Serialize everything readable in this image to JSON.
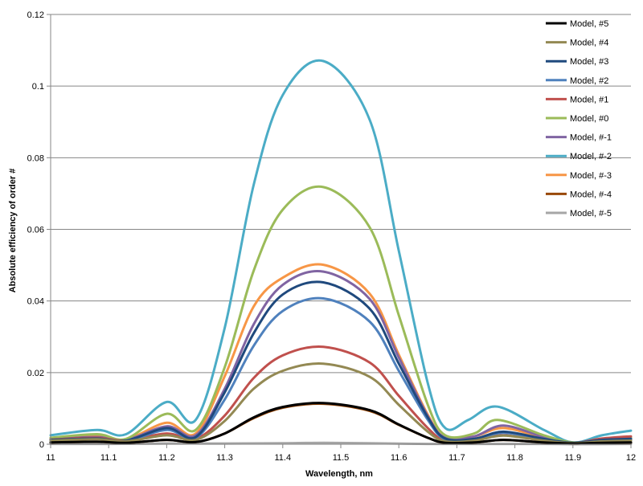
{
  "chart_data": {
    "type": "line",
    "title": "",
    "xlabel": "Wavelength, nm",
    "ylabel": "Absolute efficiency of order #",
    "xlim": [
      11,
      12
    ],
    "ylim": [
      0,
      0.12
    ],
    "xticks": [
      "11",
      "11.1",
      "11.2",
      "11.3",
      "11.4",
      "11.5",
      "11.6",
      "11.7",
      "11.8",
      "11.9",
      "12"
    ],
    "yticks": [
      "0",
      "0.02",
      "0.04",
      "0.06",
      "0.08",
      "0.1",
      "0.12"
    ],
    "grid": "horizontal major",
    "legend_position": "top-right",
    "series": [
      {
        "name": "Model, #5",
        "color": "#000000",
        "points": [
          [
            11,
            0.0005
          ],
          [
            11.08,
            0.0007
          ],
          [
            11.13,
            0.0004
          ],
          [
            11.2,
            0.0012
          ],
          [
            11.25,
            0.0006
          ],
          [
            11.3,
            0.003
          ],
          [
            11.35,
            0.0075
          ],
          [
            11.4,
            0.0104
          ],
          [
            11.47,
            0.0115
          ],
          [
            11.55,
            0.0095
          ],
          [
            11.6,
            0.0055
          ],
          [
            11.65,
            0.0018
          ],
          [
            11.68,
            0.0004
          ],
          [
            11.73,
            0.0005
          ],
          [
            11.78,
            0.0012
          ],
          [
            11.85,
            0.0005
          ],
          [
            11.9,
            0.0002
          ],
          [
            11.95,
            0.0004
          ],
          [
            12,
            0.0005
          ]
        ]
      },
      {
        "name": "Model, #4",
        "color": "#938953",
        "points": [
          [
            11,
            0.001
          ],
          [
            11.08,
            0.0014
          ],
          [
            11.13,
            0.0008
          ],
          [
            11.2,
            0.0025
          ],
          [
            11.25,
            0.0012
          ],
          [
            11.3,
            0.0065
          ],
          [
            11.35,
            0.0155
          ],
          [
            11.4,
            0.0205
          ],
          [
            11.47,
            0.0225
          ],
          [
            11.55,
            0.0188
          ],
          [
            11.6,
            0.011
          ],
          [
            11.65,
            0.0035
          ],
          [
            11.68,
            0.0008
          ],
          [
            11.73,
            0.001
          ],
          [
            11.78,
            0.0024
          ],
          [
            11.85,
            0.001
          ],
          [
            11.9,
            0.0003
          ],
          [
            11.95,
            0.0008
          ],
          [
            12,
            0.001
          ]
        ]
      },
      {
        "name": "Model, #3",
        "color": "#1F497D",
        "points": [
          [
            11,
            0.0012
          ],
          [
            11.08,
            0.0016
          ],
          [
            11.13,
            0.001
          ],
          [
            11.2,
            0.0045
          ],
          [
            11.25,
            0.002
          ],
          [
            11.3,
            0.0145
          ],
          [
            11.35,
            0.031
          ],
          [
            11.4,
            0.0418
          ],
          [
            11.47,
            0.0452
          ],
          [
            11.55,
            0.0378
          ],
          [
            11.6,
            0.0225
          ],
          [
            11.65,
            0.0075
          ],
          [
            11.68,
            0.0016
          ],
          [
            11.73,
            0.0015
          ],
          [
            11.78,
            0.0035
          ],
          [
            11.85,
            0.0015
          ],
          [
            11.9,
            0.0004
          ],
          [
            11.95,
            0.0012
          ],
          [
            12,
            0.0015
          ]
        ]
      },
      {
        "name": "Model, #2",
        "color": "#4F81BD",
        "points": [
          [
            11,
            0.0011
          ],
          [
            11.08,
            0.0015
          ],
          [
            11.13,
            0.0009
          ],
          [
            11.2,
            0.004
          ],
          [
            11.25,
            0.0018
          ],
          [
            11.3,
            0.0125
          ],
          [
            11.35,
            0.0275
          ],
          [
            11.4,
            0.0372
          ],
          [
            11.47,
            0.0407
          ],
          [
            11.55,
            0.0342
          ],
          [
            11.6,
            0.0205
          ],
          [
            11.65,
            0.0068
          ],
          [
            11.68,
            0.0014
          ],
          [
            11.73,
            0.0013
          ],
          [
            11.78,
            0.0032
          ],
          [
            11.85,
            0.0013
          ],
          [
            11.9,
            0.0003
          ],
          [
            11.95,
            0.0011
          ],
          [
            12,
            0.0014
          ]
        ]
      },
      {
        "name": "Model, #1",
        "color": "#C0504D",
        "points": [
          [
            11,
            0.0013
          ],
          [
            11.08,
            0.0018
          ],
          [
            11.13,
            0.001
          ],
          [
            11.2,
            0.003
          ],
          [
            11.25,
            0.0015
          ],
          [
            11.3,
            0.008
          ],
          [
            11.35,
            0.0185
          ],
          [
            11.4,
            0.0248
          ],
          [
            11.47,
            0.0272
          ],
          [
            11.55,
            0.0228
          ],
          [
            11.6,
            0.0135
          ],
          [
            11.65,
            0.0045
          ],
          [
            11.68,
            0.001
          ],
          [
            11.73,
            0.0012
          ],
          [
            11.78,
            0.0025
          ],
          [
            11.85,
            0.001
          ],
          [
            11.9,
            0.0003
          ],
          [
            11.95,
            0.0016
          ],
          [
            12,
            0.0022
          ]
        ]
      },
      {
        "name": "Model, #0",
        "color": "#9BBB59",
        "points": [
          [
            11,
            0.0018
          ],
          [
            11.08,
            0.0028
          ],
          [
            11.13,
            0.0015
          ],
          [
            11.2,
            0.0085
          ],
          [
            11.25,
            0.004
          ],
          [
            11.3,
            0.0215
          ],
          [
            11.35,
            0.0485
          ],
          [
            11.4,
            0.0655
          ],
          [
            11.47,
            0.0718
          ],
          [
            11.55,
            0.0605
          ],
          [
            11.6,
            0.036
          ],
          [
            11.65,
            0.011
          ],
          [
            11.68,
            0.0025
          ],
          [
            11.73,
            0.003
          ],
          [
            11.77,
            0.0068
          ],
          [
            11.85,
            0.0025
          ],
          [
            11.9,
            0.0005
          ],
          [
            11.95,
            0.0012
          ],
          [
            12,
            0.0018
          ]
        ]
      },
      {
        "name": "Model, #-1",
        "color": "#8064A2",
        "points": [
          [
            11,
            0.0014
          ],
          [
            11.08,
            0.002
          ],
          [
            11.13,
            0.0012
          ],
          [
            11.2,
            0.005
          ],
          [
            11.25,
            0.0025
          ],
          [
            11.3,
            0.0155
          ],
          [
            11.35,
            0.0335
          ],
          [
            11.4,
            0.0445
          ],
          [
            11.47,
            0.0482
          ],
          [
            11.55,
            0.0405
          ],
          [
            11.6,
            0.0242
          ],
          [
            11.65,
            0.0078
          ],
          [
            11.68,
            0.0018
          ],
          [
            11.73,
            0.0022
          ],
          [
            11.78,
            0.0052
          ],
          [
            11.85,
            0.002
          ],
          [
            11.9,
            0.0004
          ],
          [
            11.95,
            0.001
          ],
          [
            12,
            0.0014
          ]
        ]
      },
      {
        "name": "Model, #-2",
        "color": "#4BACC6",
        "points": [
          [
            11,
            0.0025
          ],
          [
            11.08,
            0.004
          ],
          [
            11.13,
            0.0028
          ],
          [
            11.2,
            0.0118
          ],
          [
            11.25,
            0.0068
          ],
          [
            11.3,
            0.0325
          ],
          [
            11.35,
            0.0725
          ],
          [
            11.4,
            0.0975
          ],
          [
            11.47,
            0.107
          ],
          [
            11.55,
            0.0905
          ],
          [
            11.6,
            0.054
          ],
          [
            11.65,
            0.017
          ],
          [
            11.68,
            0.0045
          ],
          [
            11.72,
            0.0068
          ],
          [
            11.77,
            0.0105
          ],
          [
            11.85,
            0.004
          ],
          [
            11.9,
            0.0005
          ],
          [
            11.95,
            0.0025
          ],
          [
            12,
            0.0038
          ]
        ]
      },
      {
        "name": "Model, #-3",
        "color": "#F79646",
        "points": [
          [
            11,
            0.0015
          ],
          [
            11.08,
            0.0022
          ],
          [
            11.13,
            0.0013
          ],
          [
            11.2,
            0.006
          ],
          [
            11.25,
            0.003
          ],
          [
            11.3,
            0.019
          ],
          [
            11.35,
            0.0385
          ],
          [
            11.4,
            0.0465
          ],
          [
            11.47,
            0.0501
          ],
          [
            11.55,
            0.042
          ],
          [
            11.6,
            0.025
          ],
          [
            11.65,
            0.0082
          ],
          [
            11.68,
            0.0018
          ],
          [
            11.73,
            0.0022
          ],
          [
            11.78,
            0.0045
          ],
          [
            11.85,
            0.0018
          ],
          [
            11.9,
            0.0004
          ],
          [
            11.95,
            0.001
          ],
          [
            12,
            0.0014
          ]
        ]
      },
      {
        "name": "Model, #-4",
        "color": "#984807",
        "points": [
          [
            11,
            0.0005
          ],
          [
            11.08,
            0.0007
          ],
          [
            11.13,
            0.0004
          ],
          [
            11.2,
            0.0012
          ],
          [
            11.25,
            0.0006
          ],
          [
            11.3,
            0.003
          ],
          [
            11.35,
            0.0073
          ],
          [
            11.4,
            0.0102
          ],
          [
            11.47,
            0.0113
          ],
          [
            11.55,
            0.0093
          ],
          [
            11.6,
            0.0054
          ],
          [
            11.65,
            0.0018
          ],
          [
            11.68,
            0.0004
          ],
          [
            11.73,
            0.0005
          ],
          [
            11.78,
            0.0012
          ],
          [
            11.85,
            0.0005
          ],
          [
            11.9,
            0.0002
          ],
          [
            11.95,
            0.0004
          ],
          [
            12,
            0.0005
          ]
        ]
      },
      {
        "name": "Model, #-5",
        "color": "#A6A6A6",
        "points": [
          [
            11,
            0.0001
          ],
          [
            11.1,
            0.0001
          ],
          [
            11.2,
            0.0002
          ],
          [
            11.3,
            0.0002
          ],
          [
            11.4,
            0.0003
          ],
          [
            11.47,
            0.0004
          ],
          [
            11.55,
            0.0003
          ],
          [
            11.65,
            0.0001
          ],
          [
            11.75,
            0.0001
          ],
          [
            11.85,
            0.0001
          ],
          [
            11.9,
            0.0
          ],
          [
            12,
            0.0001
          ]
        ]
      }
    ]
  }
}
